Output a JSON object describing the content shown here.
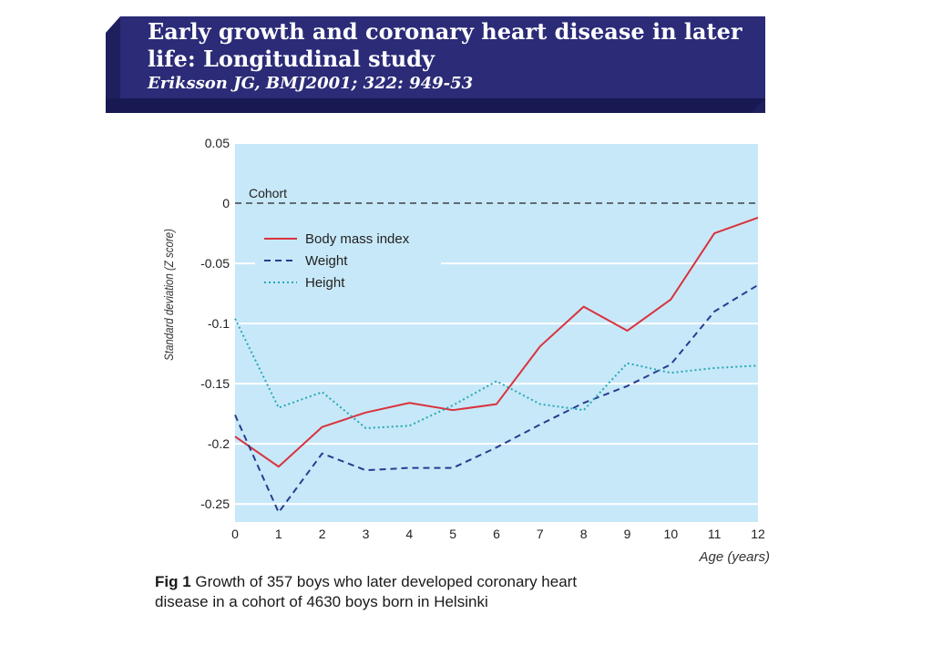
{
  "header": {
    "title_line1": "Early growth and coronary heart disease in later",
    "title_line2": "life: Longitudinal study",
    "citation": "Eriksson JG, BMJ2001; 322: 949-53"
  },
  "colors": {
    "banner": "#2b2b78",
    "plot_background": "#c7e8f8",
    "bmi": "#d9323c",
    "weight": "#2b3a8f",
    "height": "#23a8b8"
  },
  "chart_data": {
    "type": "line",
    "x": [
      0,
      1,
      2,
      3,
      4,
      5,
      6,
      7,
      8,
      9,
      10,
      11,
      12
    ],
    "xlim": [
      0,
      12
    ],
    "ylim": [
      -0.265,
      0.05
    ],
    "yticks": [
      0.05,
      0,
      -0.05,
      -0.1,
      -0.15,
      -0.2,
      -0.25
    ],
    "ytick_labels": [
      "0.05",
      "0",
      "-0.05",
      "-0.1",
      "-0.15",
      "-0.2",
      "-0.25"
    ],
    "xtick_labels": [
      "0",
      "1",
      "2",
      "3",
      "4",
      "5",
      "6",
      "7",
      "8",
      "9",
      "10",
      "11",
      "12"
    ],
    "xlabel": "Age (years)",
    "ylabel": "Standard deviation (Z score)",
    "reference": {
      "label": "Cohort",
      "y": 0
    },
    "grid": "horizontal white",
    "legend_position": "top-left",
    "series": [
      {
        "name": "Body mass index",
        "style": "solid",
        "values": [
          -0.194,
          -0.219,
          -0.186,
          -0.174,
          -0.166,
          -0.172,
          -0.167,
          -0.119,
          -0.086,
          -0.106,
          -0.08,
          -0.025,
          -0.012
        ]
      },
      {
        "name": "Weight",
        "style": "dashed",
        "values": [
          -0.176,
          -0.257,
          -0.208,
          -0.222,
          -0.22,
          -0.22,
          -0.203,
          -0.184,
          -0.166,
          -0.152,
          -0.134,
          -0.09,
          -0.068
        ]
      },
      {
        "name": "Height",
        "style": "dotted",
        "values": [
          -0.096,
          -0.17,
          -0.157,
          -0.187,
          -0.185,
          -0.168,
          -0.148,
          -0.167,
          -0.172,
          -0.133,
          -0.141,
          -0.137,
          -0.135
        ]
      }
    ]
  },
  "caption": {
    "label": "Fig 1",
    "text": "Growth of 357 boys who later developed coronary heart",
    "text2": "disease in a cohort of 4630 boys born in Helsinki"
  }
}
